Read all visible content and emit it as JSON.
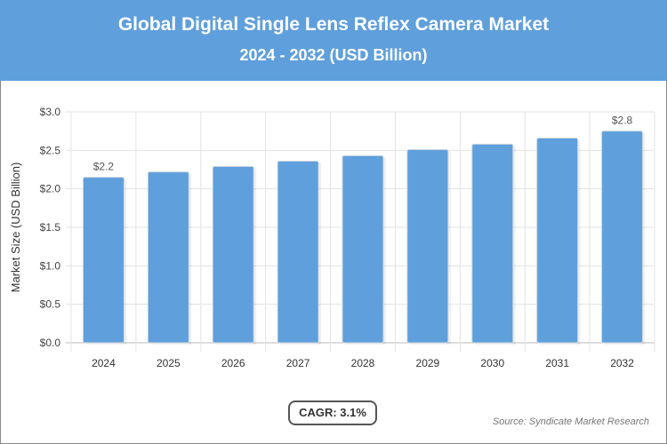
{
  "header": {
    "title": "Global Digital Single Lens Reflex Camera Market",
    "subtitle": "2024 - 2032 (USD Billion)"
  },
  "chart_data": {
    "type": "bar",
    "title": "Global Digital Single Lens Reflex Camera Market",
    "subtitle": "2024 - 2032 (USD Billion)",
    "xlabel": "",
    "ylabel": "Market Size (USD Billion)",
    "categories": [
      "2024",
      "2025",
      "2026",
      "2027",
      "2028",
      "2029",
      "2030",
      "2031",
      "2032"
    ],
    "values": [
      2.15,
      2.22,
      2.29,
      2.36,
      2.43,
      2.51,
      2.58,
      2.66,
      2.75
    ],
    "data_labels": {
      "2024": "$2.2",
      "2032": "$2.8"
    },
    "ylim": [
      0,
      3.0
    ],
    "yticks": [
      "$0.0",
      "$0.5",
      "$1.0",
      "$1.5",
      "$2.0",
      "$2.5",
      "$3.0"
    ],
    "grid": true,
    "bar_color": "#5f9fdc"
  },
  "footer": {
    "cagr": "CAGR: 3.1%",
    "source": "Source: Syndicate Market Research"
  }
}
